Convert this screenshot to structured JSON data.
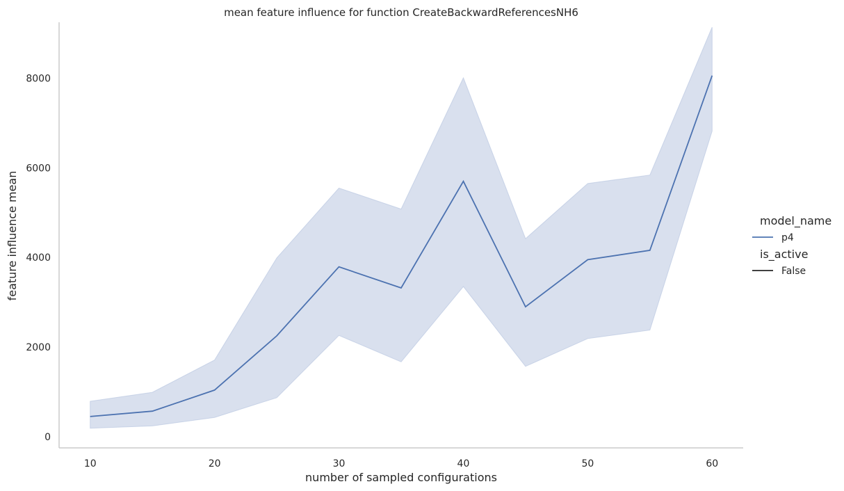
{
  "chart_data": {
    "type": "line",
    "title": "mean feature influence for function CreateBackwardReferencesNH6",
    "xlabel": "number of sampled configurations",
    "ylabel": "feature influence mean",
    "xlim": [
      7.5,
      62.5
    ],
    "ylim": [
      -250,
      9250
    ],
    "x_ticks": [
      10,
      20,
      30,
      40,
      50,
      60
    ],
    "y_ticks": [
      0,
      2000,
      4000,
      6000,
      8000
    ],
    "grid": false,
    "legend_placement": "right",
    "legend": {
      "hue_title": "model_name",
      "style_title": "is_active",
      "entries": [
        {
          "group": "hue",
          "label": "p4",
          "color": "#4c72b0"
        },
        {
          "group": "style",
          "label": "False",
          "color": "#262626"
        }
      ]
    },
    "series": [
      {
        "name": "p4",
        "color": "#4c72b0",
        "band_color": "#b3c2de",
        "x": [
          10,
          15,
          20,
          25,
          30,
          35,
          40,
          45,
          50,
          55,
          60
        ],
        "values": [
          450,
          570,
          1040,
          2250,
          3790,
          3320,
          5700,
          2900,
          3950,
          4160,
          8060
        ],
        "ci_lower": [
          190,
          240,
          430,
          870,
          2260,
          1670,
          3350,
          1570,
          2190,
          2380,
          6820
        ],
        "ci_upper": [
          790,
          990,
          1710,
          3990,
          5550,
          5080,
          8010,
          4420,
          5650,
          5840,
          9140
        ]
      }
    ]
  }
}
